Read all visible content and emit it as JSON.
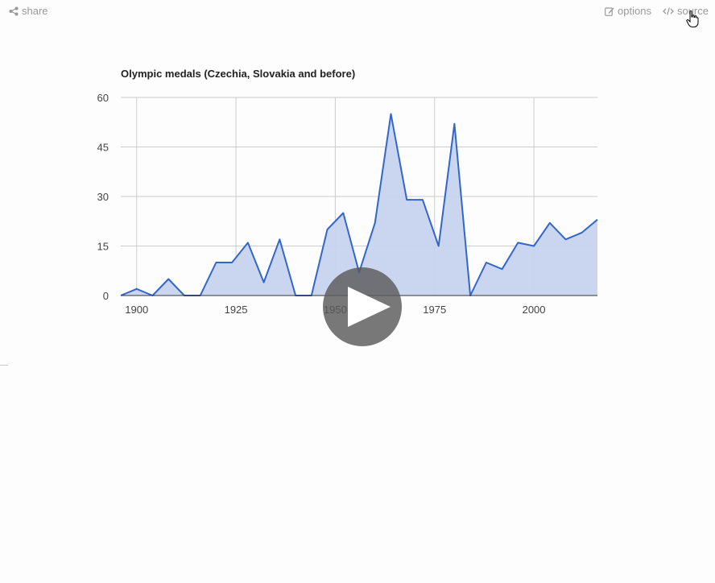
{
  "toolbar": {
    "share_label": "share",
    "options_label": "options",
    "source_label": "source"
  },
  "play_button": {
    "icon": "play-icon"
  },
  "colors": {
    "line": "#3366cc",
    "fill": "#c7d3ef",
    "grid": "#cccccc",
    "text": "#444444"
  },
  "chart_data": {
    "type": "area",
    "title": "Olympic medals (Czechia, Slovakia and before)",
    "xlabel": "",
    "ylabel": "",
    "xlim": [
      1896,
      2016
    ],
    "ylim": [
      0,
      60
    ],
    "x_ticks": [
      1900,
      1925,
      1950,
      1975,
      2000
    ],
    "y_ticks": [
      0,
      15,
      30,
      45,
      60
    ],
    "grid": true,
    "series": [
      {
        "x": [
          1896,
          1900,
          1904,
          1908,
          1912,
          1916,
          1920,
          1924,
          1928,
          1932,
          1936,
          1940,
          1944,
          1948,
          1952,
          1956,
          1960,
          1964,
          1968,
          1972,
          1976,
          1980,
          1984,
          1988,
          1992,
          1996,
          2000,
          2004,
          2008,
          2012,
          2016
        ],
        "values": [
          0,
          2,
          0,
          5,
          0,
          0,
          10,
          10,
          16,
          4,
          17,
          0,
          0,
          20,
          25,
          7,
          22,
          55,
          29,
          29,
          15,
          52,
          0,
          10,
          8,
          16,
          15,
          22,
          17,
          19,
          23
        ]
      }
    ]
  }
}
